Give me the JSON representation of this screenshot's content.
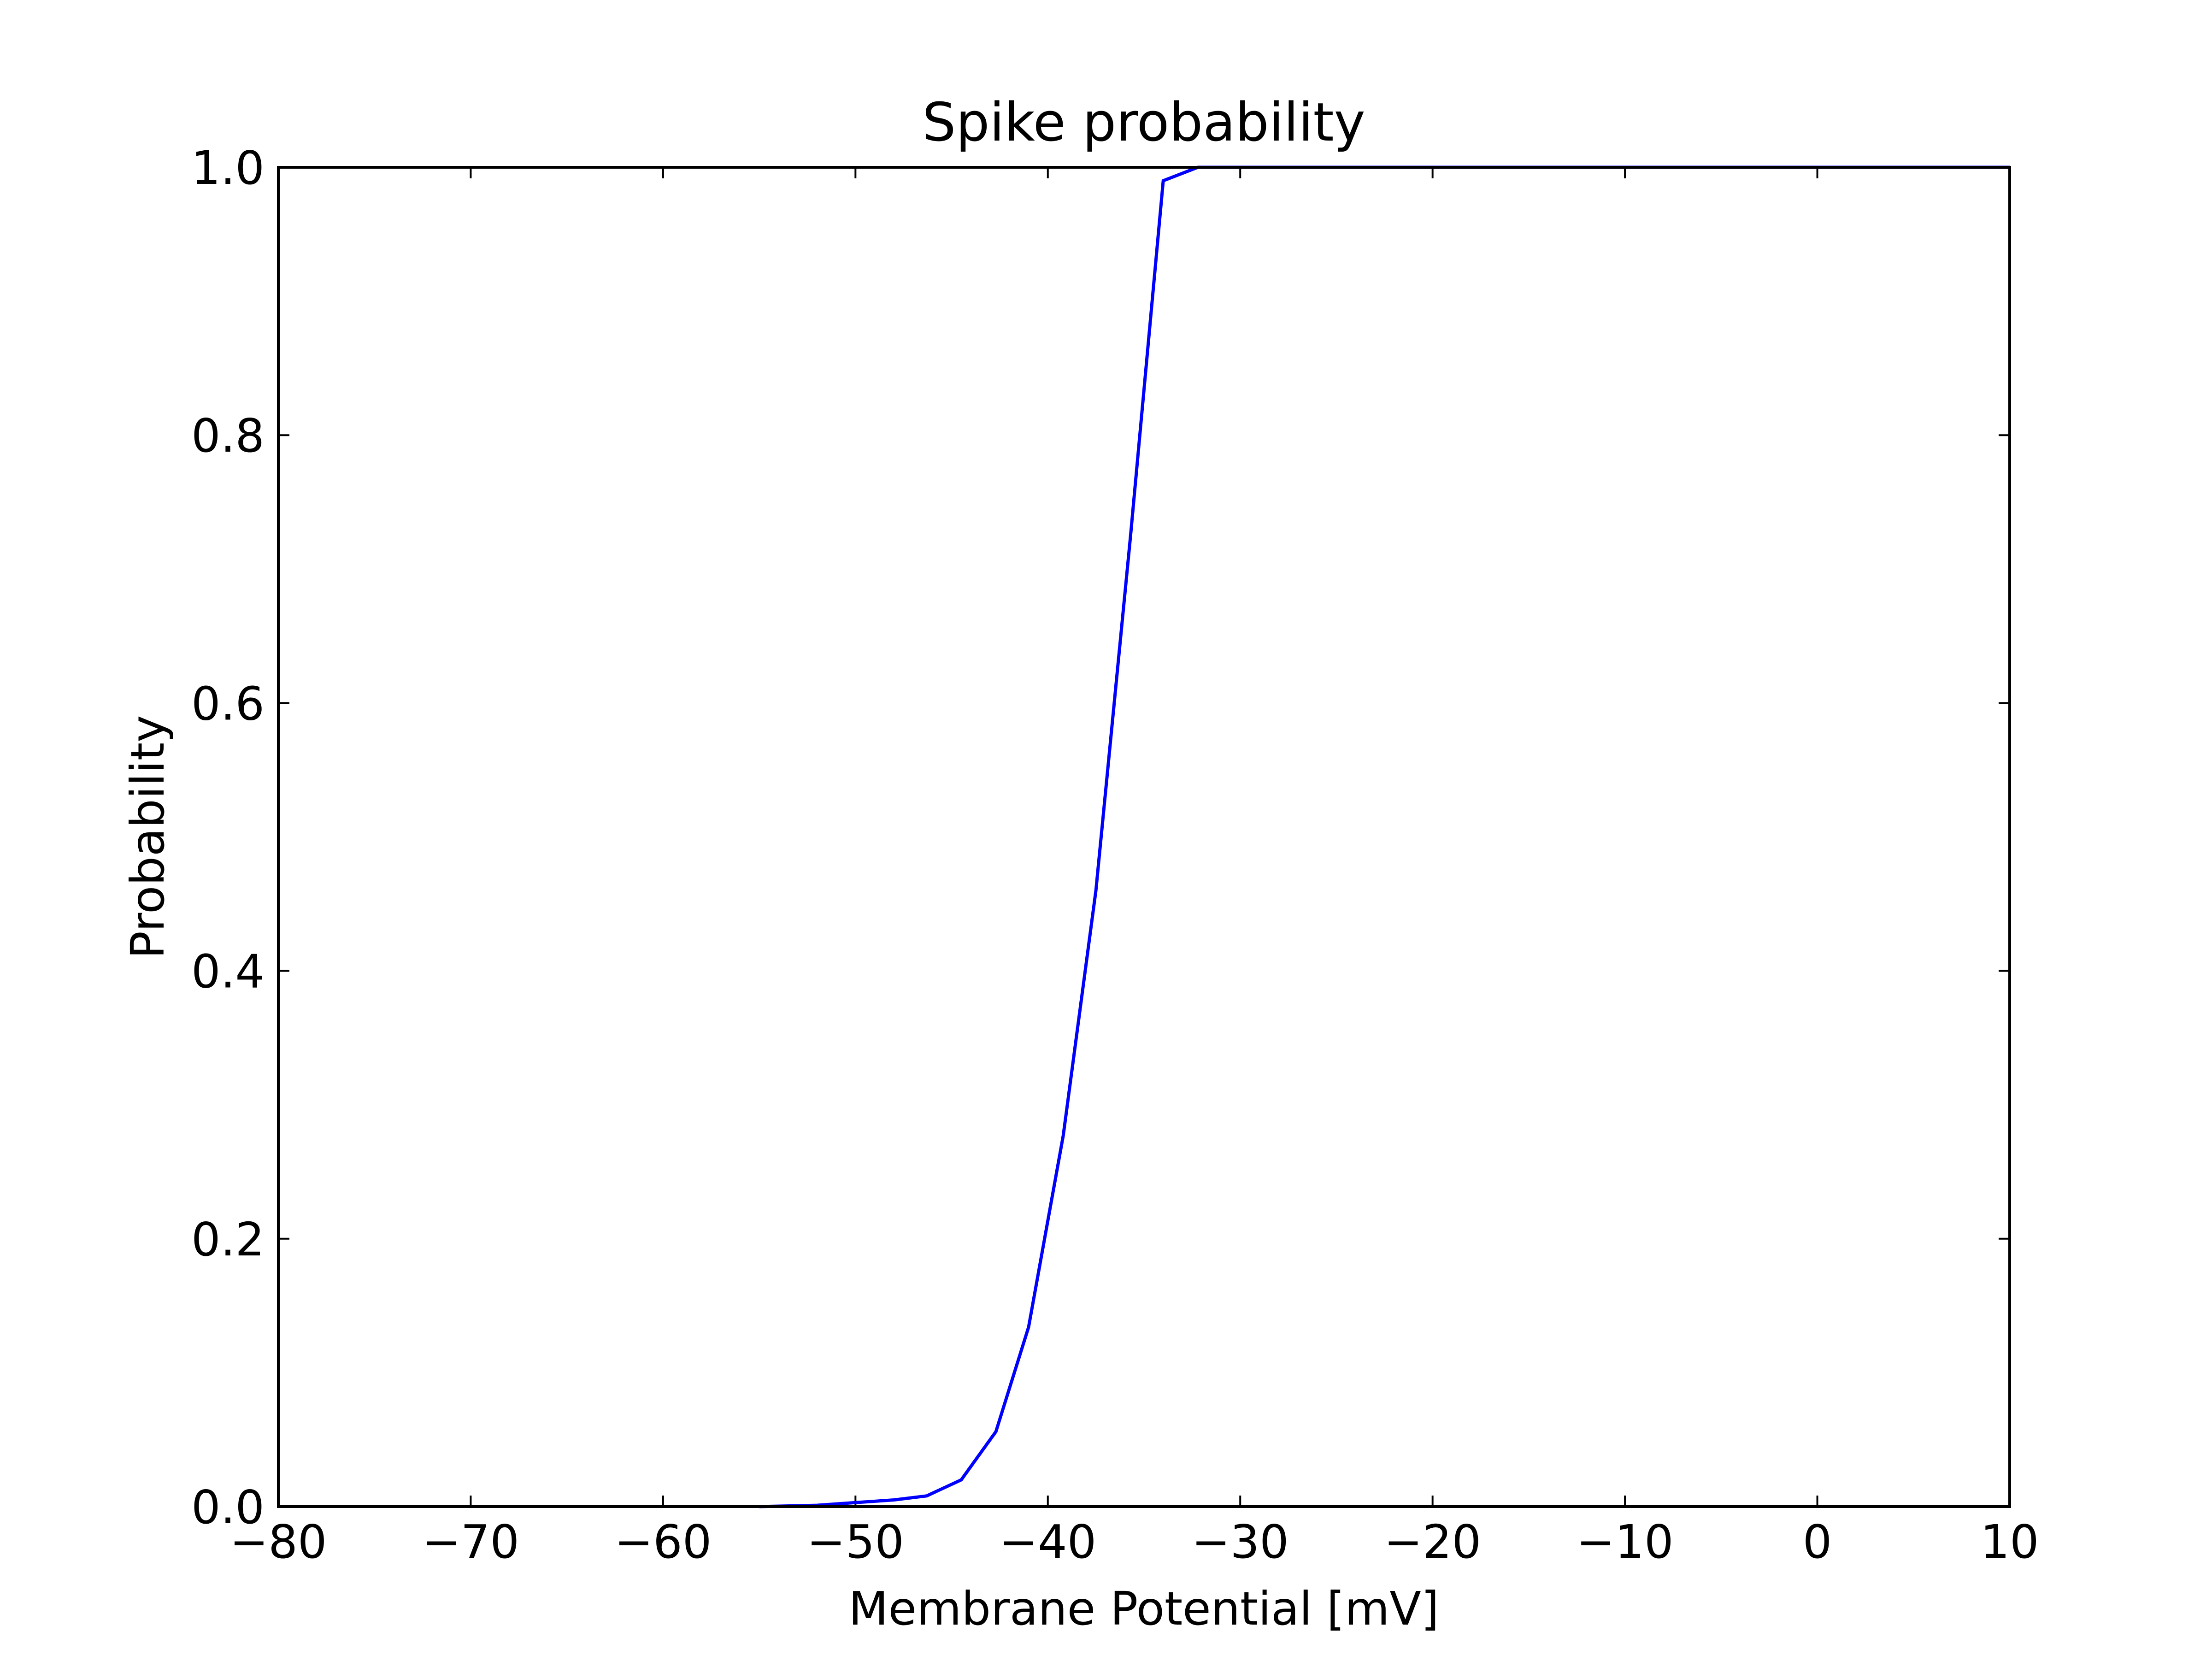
{
  "chart_data": {
    "type": "line",
    "title": "Spike probability",
    "xlabel": "Membrane Potential [mV]",
    "ylabel": "Probability",
    "xlim": [
      -80,
      10
    ],
    "ylim": [
      0.0,
      1.0
    ],
    "xticks": [
      -80,
      -70,
      -60,
      -50,
      -40,
      -30,
      -20,
      -10,
      0,
      10
    ],
    "xtick_labels": [
      "−80",
      "−70",
      "−60",
      "−50",
      "−40",
      "−30",
      "−20",
      "−10",
      "0",
      "10"
    ],
    "yticks": [
      0.0,
      0.2,
      0.4,
      0.6,
      0.8,
      1.0
    ],
    "ytick_labels": [
      "0.0",
      "0.2",
      "0.4",
      "0.6",
      "0.8",
      "1.0"
    ],
    "grid": false,
    "series": [
      {
        "color": "#0000ff",
        "x": [
          -55.0,
          -52.0,
          -50.0,
          -48.0,
          -46.3,
          -44.5,
          -42.7,
          -41.0,
          -39.2,
          -37.5,
          -35.7,
          -34.0,
          -32.2,
          -30.0,
          10.0
        ],
        "y": [
          0.0,
          0.001,
          0.003,
          0.005,
          0.008,
          0.02,
          0.056,
          0.134,
          0.277,
          0.46,
          0.725,
          0.99,
          1.0,
          1.0,
          1.0
        ]
      }
    ]
  }
}
